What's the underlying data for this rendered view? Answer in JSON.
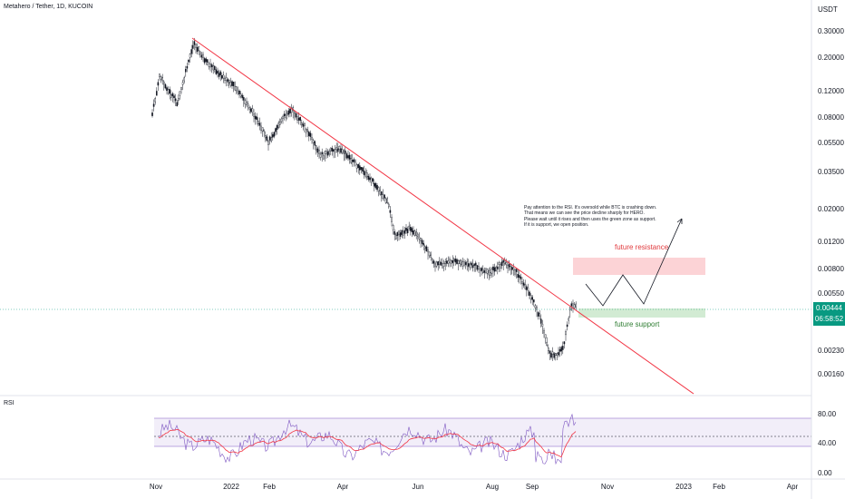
{
  "header": {
    "symbol_title": "Metahero / Tether, 1D, KUCOIN",
    "unit": "USDT"
  },
  "price_axis": {
    "ticks": [
      "0.30000",
      "0.20000",
      "0.12000",
      "0.08000",
      "0.05500",
      "0.03500",
      "0.02000",
      "0.01200",
      "0.00800",
      "0.00550",
      "0.00230",
      "0.00160"
    ],
    "tick_values": [
      0.3,
      0.2,
      0.12,
      0.08,
      0.055,
      0.035,
      0.02,
      0.012,
      0.008,
      0.0055,
      0.0023,
      0.0016
    ],
    "scale": "log",
    "current_price": "0.00444",
    "countdown": "06:58:52",
    "badge_color": "#089981"
  },
  "time_axis": {
    "labels": [
      "Nov",
      "2022",
      "Feb",
      "Apr",
      "Jun",
      "Aug",
      "Sep",
      "Nov",
      "2023",
      "Feb",
      "Apr"
    ]
  },
  "rsi_panel": {
    "label": "RSI",
    "ticks": [
      "80.00",
      "40.00",
      "0.00"
    ],
    "band_color": "#7e57c2",
    "line_color": "#7e57c2",
    "ma_color": "#f23645"
  },
  "annotation": {
    "lines": [
      "Pay attention to the RSI. It's oversold while BTC is crashing down.",
      "That means we can see the price decline sharply for HERO.",
      "Please wait until it rises and then uses the green zone as support.",
      "If it is support, we open position."
    ]
  },
  "zones": {
    "resistance_label": "future resistance",
    "support_label": "future support",
    "resistance_color": "#f23645",
    "support_color": "#4caf50"
  },
  "trendline_color": "#f23645",
  "candle_color": "#131722"
}
